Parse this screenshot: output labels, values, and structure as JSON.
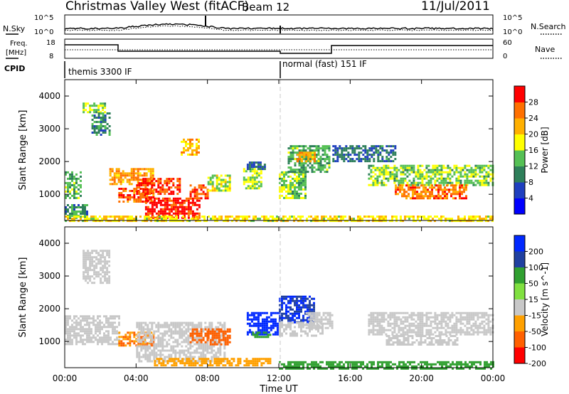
{
  "header": {
    "station": "Christmas Valley West (fitACF)",
    "beam": "Beam 12",
    "date": "11/Jul/2011"
  },
  "noise_panel": {
    "left_label": "N.Sky",
    "right_label": "N.Search",
    "left_ticks": [
      "10^5",
      "10^0"
    ],
    "right_ticks": [
      "10^5",
      "10^0"
    ]
  },
  "freq_panel": {
    "left_label_1": "Freq.",
    "left_label_2": "[MHz]",
    "right_label": "Nave",
    "left_ticks": [
      "18",
      "8"
    ],
    "right_ticks": [
      "60",
      "0"
    ]
  },
  "cpid_panel": {
    "label": "CPID",
    "programs": [
      {
        "name": "themis 3300 IF",
        "start_hour": 0
      },
      {
        "name": "normal (fast) 151 IF",
        "start_hour": 12
      }
    ]
  },
  "time_axis": {
    "label": "Time UT",
    "ticks": [
      "00:00",
      "04:00",
      "08:00",
      "12:00",
      "16:00",
      "20:00",
      "00:00"
    ]
  },
  "chart_data": [
    {
      "type": "heatmap",
      "parameter": "power",
      "xlabel": "Time UT",
      "ylabel": "Slant Range [km]",
      "yticks": [
        "1000",
        "2000",
        "3000",
        "4000"
      ],
      "xlim": [
        0,
        24
      ],
      "ylim": [
        200,
        4500
      ],
      "colorbar": {
        "label": "Power [dB]",
        "ticks": [
          "4",
          "8",
          "12",
          "16",
          "20",
          "24",
          "28"
        ],
        "range": [
          0,
          30
        ],
        "colors": [
          "#0000ff",
          "#1f3fbf",
          "#2e7f5a",
          "#55c055",
          "#ffff00",
          "#ffb000",
          "#ff7000",
          "#ff0000"
        ]
      },
      "regions": [
        {
          "t": [
            0.0,
            0.9
          ],
          "r": [
            900,
            1700
          ],
          "v": 12
        },
        {
          "t": [
            0.0,
            1.2
          ],
          "r": [
            300,
            700
          ],
          "v": 10
        },
        {
          "t": [
            1.0,
            2.2
          ],
          "r": [
            3500,
            3800
          ],
          "v": 14
        },
        {
          "t": [
            1.5,
            2.5
          ],
          "r": [
            2800,
            3500
          ],
          "v": 10
        },
        {
          "t": [
            2.5,
            5.0
          ],
          "r": [
            1300,
            1800
          ],
          "v": 22
        },
        {
          "t": [
            3.0,
            5.0
          ],
          "r": [
            800,
            1200
          ],
          "v": 25
        },
        {
          "t": [
            4.0,
            6.5
          ],
          "r": [
            1000,
            1500
          ],
          "v": 27
        },
        {
          "t": [
            4.5,
            7.5
          ],
          "r": [
            300,
            900
          ],
          "v": 28
        },
        {
          "t": [
            6.5,
            7.5
          ],
          "r": [
            2200,
            2700
          ],
          "v": 20
        },
        {
          "t": [
            7.0,
            8.0
          ],
          "r": [
            900,
            1300
          ],
          "v": 26
        },
        {
          "t": [
            8.0,
            9.2
          ],
          "r": [
            1100,
            1600
          ],
          "v": 16
        },
        {
          "t": [
            10.0,
            11.0
          ],
          "r": [
            1200,
            1800
          ],
          "v": 15
        },
        {
          "t": [
            10.2,
            11.2
          ],
          "r": [
            1800,
            2000
          ],
          "v": 8
        },
        {
          "t": [
            12.0,
            13.5
          ],
          "r": [
            900,
            1700
          ],
          "v": 14
        },
        {
          "t": [
            12.5,
            14.8
          ],
          "r": [
            1700,
            2500
          ],
          "v": 12
        },
        {
          "t": [
            13.0,
            14.0
          ],
          "r": [
            2000,
            2300
          ],
          "v": 22
        },
        {
          "t": [
            15.0,
            18.5
          ],
          "r": [
            2000,
            2500
          ],
          "v": 8
        },
        {
          "t": [
            17.0,
            24.0
          ],
          "r": [
            1300,
            1900
          ],
          "v": 14
        },
        {
          "t": [
            18.5,
            22.5
          ],
          "r": [
            900,
            1300
          ],
          "v": 24
        },
        {
          "t": [
            0.0,
            24.0
          ],
          "r": [
            200,
            350
          ],
          "v": 18
        }
      ]
    },
    {
      "type": "heatmap",
      "parameter": "velocity",
      "xlabel": "Time UT",
      "ylabel": "Slant Range [km]",
      "yticks": [
        "1000",
        "2000",
        "3000",
        "4000"
      ],
      "xlim": [
        0,
        24
      ],
      "ylim": [
        200,
        4500
      ],
      "colorbar": {
        "label": "Velocity [m s^-1]",
        "ticks": [
          "200",
          "100",
          "50",
          "15",
          "-15",
          "-50",
          "-100",
          "-200"
        ],
        "range": [
          -250,
          250
        ],
        "colors": [
          "#0028ff",
          "#2040a0",
          "#30a030",
          "#80e040",
          "#c8c8c8",
          "#ffa000",
          "#ff6000",
          "#ff0000"
        ]
      },
      "regions": [
        {
          "t": [
            0.0,
            3.0
          ],
          "r": [
            900,
            1800
          ],
          "v": 0
        },
        {
          "t": [
            1.0,
            2.5
          ],
          "r": [
            2800,
            3800
          ],
          "v": 0
        },
        {
          "t": [
            3.0,
            5.0
          ],
          "r": [
            900,
            1300
          ],
          "v": -50
        },
        {
          "t": [
            4.0,
            9.0
          ],
          "r": [
            400,
            1600
          ],
          "v": 0
        },
        {
          "t": [
            7.0,
            8.0
          ],
          "r": [
            1000,
            1400
          ],
          "v": -80
        },
        {
          "t": [
            8.0,
            9.2
          ],
          "r": [
            900,
            1400
          ],
          "v": -60
        },
        {
          "t": [
            5.0,
            11.5
          ],
          "r": [
            250,
            500
          ],
          "v": -40
        },
        {
          "t": [
            10.2,
            12.0
          ],
          "r": [
            1200,
            1900
          ],
          "v": 170
        },
        {
          "t": [
            10.5,
            11.5
          ],
          "r": [
            1150,
            1300
          ],
          "v": 60
        },
        {
          "t": [
            12.0,
            14.0
          ],
          "r": [
            1600,
            2400
          ],
          "v": 150
        },
        {
          "t": [
            12.0,
            14.5
          ],
          "r": [
            1200,
            1600
          ],
          "v": 0
        },
        {
          "t": [
            13.5,
            15.0
          ],
          "r": [
            1400,
            1900
          ],
          "v": 0
        },
        {
          "t": [
            17.0,
            24.0
          ],
          "r": [
            1200,
            1900
          ],
          "v": 0
        },
        {
          "t": [
            18.0,
            22.0
          ],
          "r": [
            900,
            1200
          ],
          "v": 0
        },
        {
          "t": [
            12.0,
            24.0
          ],
          "r": [
            200,
            400
          ],
          "v": 40
        }
      ]
    }
  ]
}
